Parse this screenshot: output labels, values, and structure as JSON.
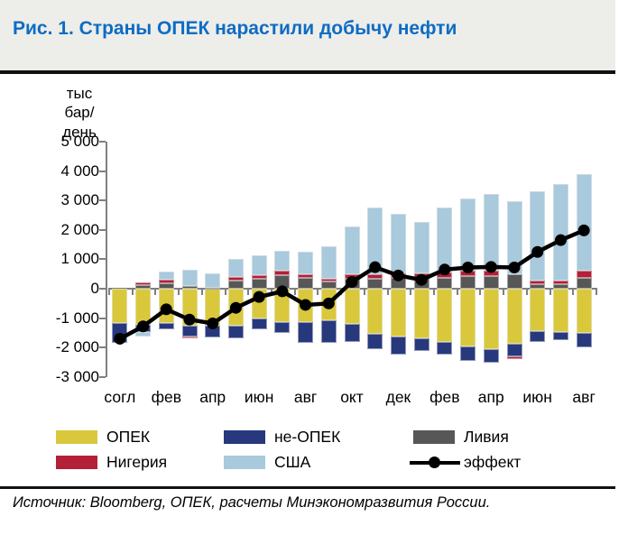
{
  "header": {
    "title": "Рис. 1. Страны ОПЕК нарастили добычу нефти"
  },
  "source_note": "Источник: Bloomberg, ОПЕК, расчеты Минэкономразвития России.",
  "chart_data": {
    "type": "bar",
    "subtype": "stacked-bar-with-line",
    "title": "Рис. 1. Страны ОПЕК нарастили добычу нефти",
    "ylabel": "тыс\nбар/день",
    "xlabel": "",
    "grid": false,
    "legend_position": "bottom",
    "ylim": [
      -3000,
      5000
    ],
    "y_axis": {
      "tick_values": [
        5000,
        4000,
        3000,
        2000,
        1000,
        0,
        -1000,
        -2000,
        -3000
      ],
      "tick_labels": [
        "5 000",
        "4 000",
        "3 000",
        "2 000",
        "1 000",
        "0",
        "-1 000",
        "-2 000",
        "-3 000"
      ]
    },
    "x_axis": {
      "tick_labels": [
        "согл",
        "фев",
        "апр",
        "июн",
        "авг",
        "окт",
        "дек",
        "фев",
        "апр",
        "июн",
        "авг"
      ],
      "labeled_bar_indices": [
        0,
        2,
        4,
        6,
        8,
        10,
        12,
        14,
        16,
        18,
        20
      ],
      "bar_count": 21
    },
    "series": [
      {
        "name": "ОПЕК",
        "color": "#d9c83c",
        "values": [
          -1180,
          -1230,
          -1160,
          -1250,
          -1250,
          -1270,
          -1000,
          -1130,
          -1130,
          -1080,
          -1200,
          -1540,
          -1610,
          -1690,
          -1795,
          -1950,
          -2050,
          -1880,
          -1440,
          -1470,
          -1510
        ]
      },
      {
        "name": "не-ОПЕК",
        "color": "#27387d",
        "values": [
          -670,
          -250,
          -225,
          -380,
          -410,
          -430,
          -365,
          -360,
          -715,
          -765,
          -595,
          -510,
          -630,
          -410,
          -445,
          -490,
          -460,
          -430,
          -360,
          -270,
          -490
        ]
      },
      {
        "name": "Ливия",
        "color": "#575757",
        "values": [
          0,
          120,
          180,
          80,
          40,
          280,
          340,
          450,
          360,
          250,
          340,
          350,
          360,
          360,
          380,
          420,
          430,
          500,
          150,
          150,
          360
        ]
      },
      {
        "name": "Нигерия",
        "color": "#b32038",
        "values": [
          0,
          85,
          120,
          -70,
          0,
          110,
          120,
          150,
          120,
          100,
          160,
          150,
          150,
          160,
          170,
          180,
          190,
          -70,
          130,
          130,
          250
        ]
      },
      {
        "name": "США",
        "color": "#a9c9dc",
        "values": [
          0,
          -130,
          285,
          550,
          470,
          610,
          670,
          700,
          780,
          1090,
          1600,
          2270,
          2020,
          1760,
          2200,
          2480,
          2610,
          2480,
          3020,
          3290,
          3270
        ]
      }
    ],
    "line_series": {
      "name": "эффект",
      "color": "#000000",
      "values": [
        -1700,
        -1280,
        -700,
        -1050,
        -1180,
        -650,
        -280,
        -90,
        -550,
        -500,
        230,
        730,
        450,
        300,
        650,
        720,
        740,
        720,
        1250,
        1650,
        1980
      ]
    },
    "legend": {
      "rows": [
        [
          {
            "label": "ОПЕК",
            "color": "#d9c83c",
            "swatch": "box"
          },
          {
            "label": "не-ОПЕК",
            "color": "#27387d",
            "swatch": "box"
          },
          {
            "label": "Ливия",
            "color": "#575757",
            "swatch": "box"
          }
        ],
        [
          {
            "label": "Нигерия",
            "color": "#b32038",
            "swatch": "box"
          },
          {
            "label": "США",
            "color": "#a9c9dc",
            "swatch": "box"
          },
          {
            "label": "эффект",
            "color": "#000000",
            "swatch": "line"
          }
        ]
      ]
    }
  }
}
